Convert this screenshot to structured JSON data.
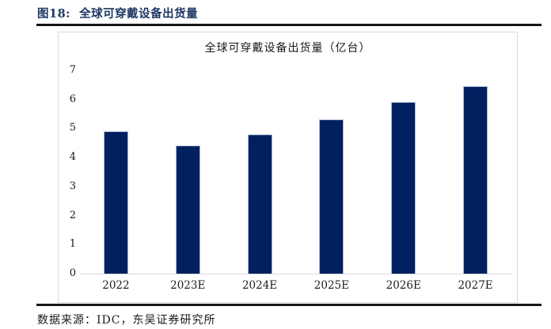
{
  "figure": {
    "title": "图18:  全球可穿戴设备出货量"
  },
  "footer": {
    "source": "数据来源：IDC，东吴证券研究所"
  },
  "colors": {
    "header_text": "#1f3864",
    "rule": "#161616",
    "box_border": "#d9d9d9",
    "baseline": "#d9d9d9",
    "bar": "#002060",
    "bar_border": "#aab6d2"
  },
  "chart_data": {
    "type": "bar",
    "title": "全球可穿戴设备出货量（亿台）",
    "categories": [
      "2022",
      "2023E",
      "2024E",
      "2025E",
      "2026E",
      "2027E"
    ],
    "values": [
      4.9,
      4.4,
      4.8,
      5.3,
      5.9,
      6.45
    ],
    "xlabel": "",
    "ylabel": "",
    "ylim": [
      0,
      7
    ],
    "yticks": [
      0,
      1,
      2,
      3,
      4,
      5,
      6,
      7
    ],
    "grid": false,
    "legend": false,
    "bar_color": "#002060"
  }
}
